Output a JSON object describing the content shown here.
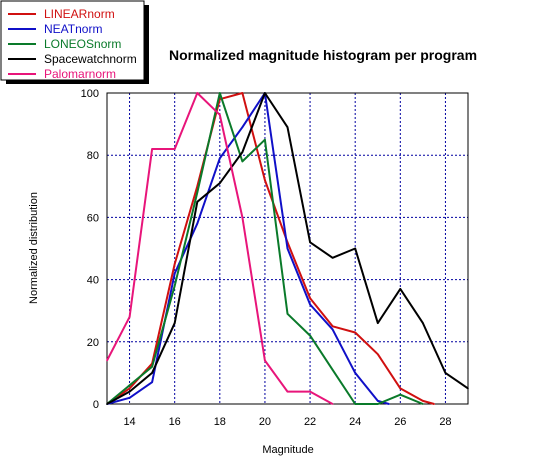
{
  "chart_data": {
    "type": "line",
    "title": "Normalized magnitude histogram per program",
    "xlabel": "Magnitude",
    "ylabel": "Normalized distribution",
    "xlim": [
      13,
      29
    ],
    "ylim": [
      0,
      100
    ],
    "xticks": [
      14,
      16,
      18,
      20,
      22,
      24,
      26,
      28
    ],
    "yticks": [
      0,
      20,
      40,
      60,
      80,
      100
    ],
    "grid": true,
    "legend_position": "top-left",
    "series": [
      {
        "name": "LINEARnorm",
        "color": "#d01010",
        "x": [
          13,
          14,
          15,
          16,
          17,
          18,
          19,
          20,
          21,
          22,
          23,
          24,
          25,
          26,
          27,
          27.5
        ],
        "y": [
          0,
          5,
          13,
          45,
          70,
          98,
          100,
          72,
          52,
          34,
          25,
          23,
          16,
          5,
          1,
          0
        ]
      },
      {
        "name": "NEATnorm",
        "color": "#1010c8",
        "x": [
          13,
          14,
          15,
          16,
          17,
          18,
          19,
          20,
          21,
          22,
          23,
          24,
          25,
          25.5
        ],
        "y": [
          0,
          2,
          7,
          42,
          58,
          79,
          89,
          100,
          50,
          32,
          24,
          10,
          1,
          0
        ]
      },
      {
        "name": "LONEOSnorm",
        "color": "#0a7a2a",
        "x": [
          13,
          14,
          15,
          16,
          17,
          18,
          19,
          20,
          21,
          22,
          23,
          24,
          25,
          26,
          27
        ],
        "y": [
          0,
          6,
          12,
          38,
          68,
          100,
          78,
          85,
          29,
          22,
          11,
          0,
          0,
          3,
          0
        ]
      },
      {
        "name": "Spacewatchnorm",
        "color": "#000000",
        "x": [
          13,
          14,
          15,
          16,
          17,
          18,
          19,
          20,
          21,
          22,
          23,
          24,
          25,
          26,
          27,
          28,
          29
        ],
        "y": [
          0,
          4,
          10,
          26,
          65,
          71,
          81,
          100,
          89,
          52,
          47,
          50,
          26,
          37,
          26,
          10,
          5
        ]
      },
      {
        "name": "Palomarnorm",
        "color": "#e8157a",
        "x": [
          13,
          14,
          15,
          16,
          17,
          18,
          19,
          20,
          21,
          22,
          23
        ],
        "y": [
          14,
          28,
          82,
          82,
          100,
          93,
          60,
          14,
          4,
          4,
          0
        ]
      }
    ]
  }
}
